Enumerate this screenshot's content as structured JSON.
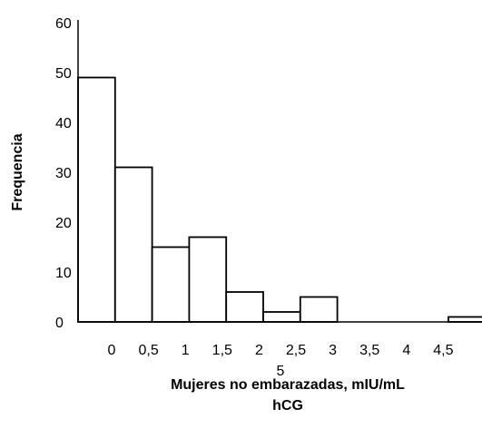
{
  "chart_data": {
    "type": "bar",
    "title": "",
    "xlabel": "Mujeres no embarazadas, mIU/mL hCG",
    "xlabel_lines": [
      "Mujeres no embarazadas, mIU/mL",
      "hCG"
    ],
    "ylabel": "Frequencia",
    "ylim": [
      0,
      60
    ],
    "yticks": [
      "0",
      "10",
      "20",
      "30",
      "40",
      "50",
      "60"
    ],
    "xtick_labels": [
      "0",
      "0,5",
      "1",
      "1,5",
      "2",
      "2,5",
      "3",
      "3,5",
      "4",
      "4,5"
    ],
    "xtick_extra": "5",
    "categories": [
      "0",
      "0,5",
      "1",
      "1,5",
      "2",
      "2,5",
      "3",
      "3,5",
      "4",
      "4,5",
      "5"
    ],
    "values": [
      49,
      31,
      15,
      17,
      6,
      2,
      5,
      0,
      0,
      0,
      1
    ],
    "grid": false,
    "legend": "none",
    "bar_fill": "#ffffff",
    "bar_edge": "#000000"
  }
}
